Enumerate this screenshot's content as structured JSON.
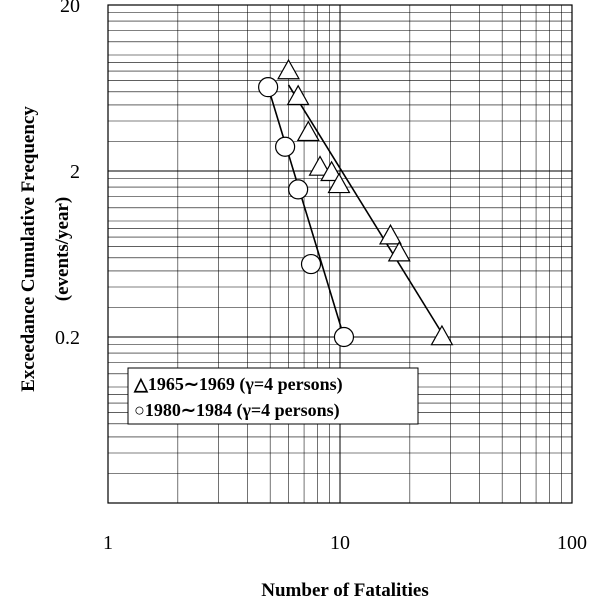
{
  "chart_data": {
    "type": "scatter",
    "x_scale": "log",
    "y_scale": "log",
    "xlim": [
      1,
      100
    ],
    "ylim": [
      0.02,
      20
    ],
    "grid": true,
    "xlabel": "Number of Fatalities",
    "ylabel_line1": "Exceedance Cumulative Frequency",
    "ylabel_line2": "(events/year)",
    "x_ticks": [
      {
        "value": 1,
        "label": "1"
      },
      {
        "value": 10,
        "label": "10"
      },
      {
        "value": 100,
        "label": "100"
      }
    ],
    "y_ticks": [
      {
        "value": 0.2,
        "label": "0.2"
      },
      {
        "value": 2,
        "label": "2"
      },
      {
        "value": 20,
        "label": "20"
      }
    ],
    "legend_placement": "center-left",
    "series": [
      {
        "name": "△1965∼1969 (γ=4 persons)",
        "legend_label": "△1965∼1969 (γ=4 persons)",
        "marker": "triangle",
        "points": [
          {
            "x": 6,
            "y": 8.0
          },
          {
            "x": 6.6,
            "y": 5.6
          },
          {
            "x": 7.3,
            "y": 3.4
          },
          {
            "x": 8.2,
            "y": 2.1
          },
          {
            "x": 9.2,
            "y": 1.95
          },
          {
            "x": 9.9,
            "y": 1.65
          },
          {
            "x": 16.5,
            "y": 0.81
          },
          {
            "x": 18,
            "y": 0.64
          },
          {
            "x": 27.5,
            "y": 0.2
          }
        ],
        "fit_line": [
          {
            "x": 6,
            "y": 6.6
          },
          {
            "x": 27,
            "y": 0.22
          }
        ]
      },
      {
        "name": "○1980∼1984 (γ=4 persons)",
        "legend_label": "○1980∼1984 (γ=4 persons)",
        "marker": "circle",
        "points": [
          {
            "x": 4.9,
            "y": 6.4
          },
          {
            "x": 5.8,
            "y": 2.8
          },
          {
            "x": 6.6,
            "y": 1.55
          },
          {
            "x": 7.5,
            "y": 0.55
          },
          {
            "x": 10.4,
            "y": 0.2
          }
        ],
        "fit_line": [
          {
            "x": 4.9,
            "y": 6.4
          },
          {
            "x": 10.4,
            "y": 0.2
          }
        ]
      }
    ]
  }
}
